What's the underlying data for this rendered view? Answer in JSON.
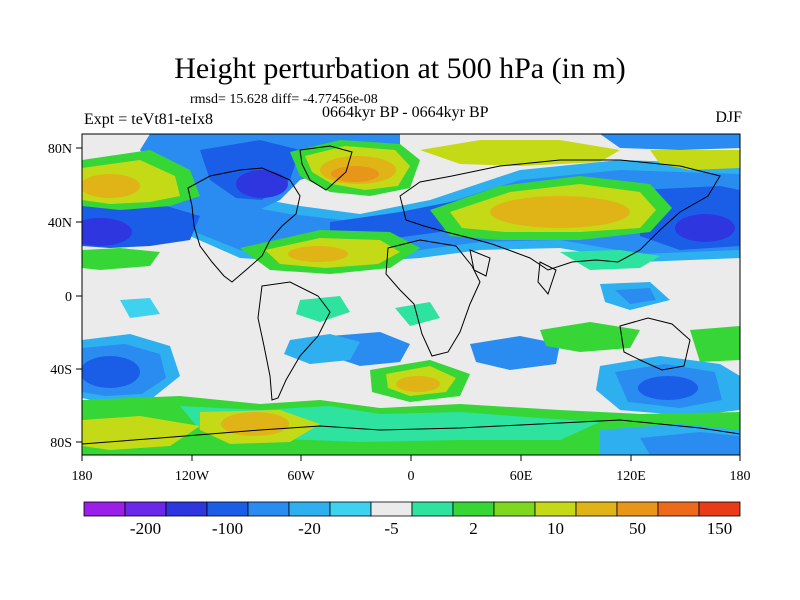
{
  "header": {
    "title": "Height perturbation at 500 hPa (in m)",
    "stats": "rmsd= 15.628 diff= -4.77456e-08",
    "experiment": "Expt = teVt81-teIx8",
    "period": "0664kyr BP - 0664kyr BP",
    "season": "DJF"
  },
  "axes": {
    "x_ticks": [
      "180",
      "120W",
      "60W",
      "0",
      "60E",
      "120E",
      "180"
    ],
    "y_ticks": [
      "80N",
      "40N",
      "0",
      "40S",
      "80S"
    ]
  },
  "colorbar": {
    "colors": [
      "#9b1fe8",
      "#6a29e8",
      "#2e36e0",
      "#1a5ee8",
      "#2a8cf0",
      "#2eb0f0",
      "#3ed2ee",
      "#ebebeb",
      "#2ee2a0",
      "#36d636",
      "#7ed81e",
      "#c4da16",
      "#e0b416",
      "#e8961a",
      "#ec6a1a",
      "#e83c18"
    ],
    "labels": [
      "-200",
      "-100",
      "-20",
      "-5",
      "2",
      "10",
      "50",
      "150"
    ]
  }
}
